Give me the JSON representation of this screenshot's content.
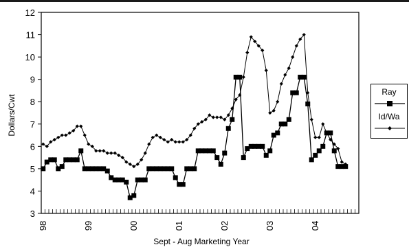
{
  "chart_data": {
    "type": "line",
    "ylabel": "Dollars/Cwt",
    "xlabel": "Sept - Aug Marketing Year",
    "ylim": [
      3,
      12
    ],
    "yticks": [
      3,
      4,
      5,
      6,
      7,
      8,
      9,
      10,
      11,
      12
    ],
    "x_tick_labels": [
      "98",
      "99",
      "00",
      "01",
      "02",
      "03",
      "04"
    ],
    "months": 84,
    "grid": false,
    "legend_placement": "right",
    "series": [
      {
        "name": "Ray",
        "color": "#000000",
        "marker": "square",
        "values": [
          5.0,
          5.3,
          5.4,
          5.4,
          5.0,
          5.1,
          5.4,
          5.4,
          5.4,
          5.4,
          5.8,
          5.0,
          5.0,
          5.0,
          5.0,
          5.0,
          5.0,
          4.9,
          4.6,
          4.5,
          4.5,
          4.5,
          4.4,
          3.7,
          3.8,
          4.5,
          4.5,
          4.5,
          5.0,
          5.0,
          5.0,
          5.0,
          5.0,
          5.0,
          5.0,
          4.6,
          4.3,
          4.3,
          5.0,
          5.0,
          5.0,
          5.8,
          5.8,
          5.8,
          5.8,
          5.8,
          5.5,
          5.2,
          5.7,
          6.8,
          7.2,
          9.1,
          9.1,
          5.5,
          5.9,
          6.0,
          6.0,
          6.0,
          6.0,
          5.6,
          5.8,
          6.5,
          6.6,
          7.0,
          7.0,
          7.2,
          8.4,
          8.4,
          9.1,
          9.1,
          7.9,
          5.4,
          5.6,
          5.8,
          6.0,
          6.6,
          6.6,
          5.8,
          5.1,
          5.1,
          5.1
        ]
      },
      {
        "name": "Id/Wa",
        "color": "#000000",
        "marker": "diamond",
        "values": [
          6.1,
          6.0,
          6.2,
          6.3,
          6.4,
          6.5,
          6.5,
          6.6,
          6.7,
          6.9,
          6.9,
          6.5,
          6.1,
          6.0,
          5.8,
          5.8,
          5.8,
          5.7,
          5.7,
          5.7,
          5.6,
          5.5,
          5.3,
          5.2,
          5.1,
          5.2,
          5.4,
          5.7,
          6.1,
          6.4,
          6.5,
          6.4,
          6.3,
          6.2,
          6.3,
          6.2,
          6.2,
          6.2,
          6.3,
          6.5,
          6.8,
          7.0,
          7.1,
          7.2,
          7.4,
          7.3,
          7.3,
          7.3,
          7.2,
          7.4,
          7.7,
          8.1,
          8.3,
          9.1,
          10.2,
          10.9,
          10.7,
          10.5,
          10.3,
          9.4,
          7.5,
          7.6,
          8.0,
          8.8,
          9.2,
          9.5,
          10.0,
          10.5,
          10.8,
          11.0,
          8.4,
          7.2,
          6.4,
          6.4,
          7.0,
          6.6,
          6.3,
          6.1,
          5.9,
          5.3,
          5.2
        ]
      }
    ]
  }
}
